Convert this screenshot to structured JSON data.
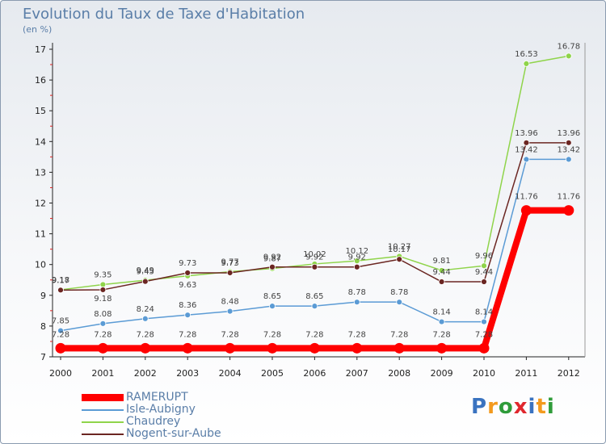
{
  "title": "Evolution du Taux de Taxe d'Habitation",
  "subtitle": "(en %)",
  "logo": "Proxiti",
  "logo_colors": [
    "#3a73c0",
    "#f39a1e",
    "#2f9c3a",
    "#e0282e",
    "#3a73c0",
    "#f39a1e",
    "#2f9c3a"
  ],
  "chart_data": {
    "type": "line",
    "title": "Evolution du Taux de Taxe d'Habitation",
    "ylabel": "(en %)",
    "xlabel": "",
    "x": [
      "2000",
      "2001",
      "2002",
      "2003",
      "2004",
      "2005",
      "2006",
      "2007",
      "2008",
      "2009",
      "2010",
      "2011",
      "2012"
    ],
    "ylim": [
      7,
      17
    ],
    "yticks": [
      "7",
      "8",
      "9",
      "10",
      "11",
      "12",
      "13",
      "14",
      "15",
      "16",
      "17"
    ],
    "legend_position": "bottom-left",
    "series": [
      {
        "name": "Chaudrey",
        "color": "#8fd44a",
        "values": [
          9.18,
          9.35,
          9.49,
          9.63,
          9.77,
          9.87,
          10.02,
          10.12,
          10.27,
          9.81,
          9.96,
          16.53,
          16.78
        ],
        "labels": [
          "9.18",
          "9.35",
          "9.49",
          "9.63",
          "9.77",
          "9.87",
          "10.02",
          "10.12",
          "10.27",
          "9.81",
          "9.96",
          "16.53",
          "16.78"
        ],
        "label_dy": [
          -9,
          -9,
          -9,
          14,
          -9,
          -9,
          -9,
          -9,
          -9,
          -9,
          -9,
          -9,
          -9
        ]
      },
      {
        "name": "Nogent-sur-Aube",
        "color": "#6b2622",
        "values": [
          9.17,
          9.18,
          9.45,
          9.73,
          9.73,
          9.92,
          9.92,
          9.92,
          10.17,
          9.44,
          9.44,
          13.96,
          13.96
        ],
        "labels": [
          "9.17",
          "9.18",
          "9.45",
          "9.73",
          "9.73",
          "9.92",
          "9.92",
          "9.92",
          "10.17",
          "9.44",
          "9.44",
          "13.96",
          "13.96"
        ],
        "label_dy": [
          -9,
          14,
          -9,
          -9,
          -9,
          -9,
          -9,
          -9,
          -9,
          -9,
          -9,
          -9,
          -9
        ]
      },
      {
        "name": "Isle-Aubigny",
        "color": "#5b9bd5",
        "values": [
          7.85,
          8.08,
          8.24,
          8.36,
          8.48,
          8.65,
          8.65,
          8.78,
          8.78,
          8.14,
          8.14,
          13.42,
          13.42
        ],
        "labels": [
          "7.85",
          "8.08",
          "8.24",
          "8.36",
          "8.48",
          "8.65",
          "8.65",
          "8.78",
          "8.78",
          "8.14",
          "8.14",
          "13.42",
          "13.42"
        ],
        "label_dy": [
          -9,
          -9,
          -9,
          -9,
          -9,
          -9,
          -9,
          -9,
          -9,
          -9,
          -9,
          -9,
          -9
        ]
      },
      {
        "name": "RAMERUPT",
        "color": "#ff0000",
        "values": [
          7.28,
          7.28,
          7.28,
          7.28,
          7.28,
          7.28,
          7.28,
          7.28,
          7.28,
          7.28,
          7.28,
          11.76,
          11.76
        ],
        "labels": [
          "7.28",
          "7.28",
          "7.28",
          "7.28",
          "7.28",
          "7.28",
          "7.28",
          "7.28",
          "7.28",
          "7.28",
          "7.28",
          "11.76",
          "11.76"
        ],
        "label_dy": [
          -14,
          -14,
          -14,
          -14,
          -14,
          -14,
          -14,
          -14,
          -14,
          -14,
          -14,
          -14,
          -14
        ]
      }
    ]
  },
  "legend": [
    {
      "name": "RAMERUPT",
      "color": "#ff0000"
    },
    {
      "name": "Isle-Aubigny",
      "color": "#5b9bd5"
    },
    {
      "name": "Chaudrey",
      "color": "#8fd44a"
    },
    {
      "name": "Nogent-sur-Aube",
      "color": "#6b2622"
    }
  ]
}
